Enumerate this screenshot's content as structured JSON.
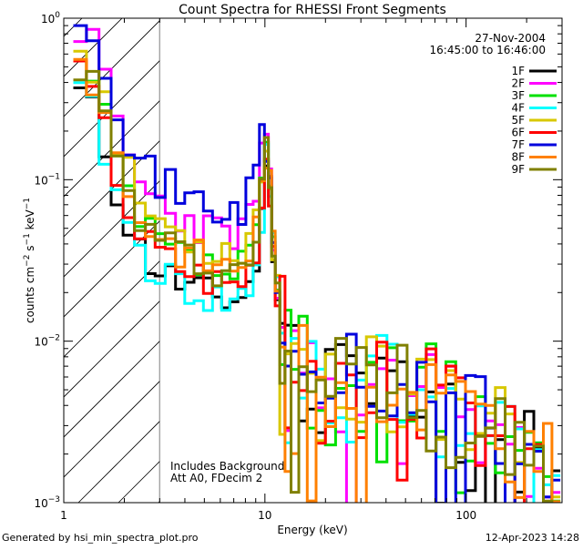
{
  "chart_data": {
    "type": "line",
    "title": "Count Spectra for RHESSI Front Segments",
    "xlabel": "Energy (keV)",
    "ylabel_parts": {
      "base": "counts cm",
      "exp1": "−2",
      "mid1": " s",
      "exp2": "−1",
      "mid2": " keV",
      "exp3": "−1"
    },
    "x_scale": "log",
    "y_scale": "log",
    "xlim": [
      1,
      300
    ],
    "ylim": [
      0.001,
      1
    ],
    "x_ticks": [
      {
        "v": 1,
        "label": "1"
      },
      {
        "v": 10,
        "label": "10"
      },
      {
        "v": 100,
        "label": "100"
      }
    ],
    "y_ticks": [
      {
        "v": 1,
        "base": "10",
        "exp": "0"
      },
      {
        "v": 0.1,
        "base": "10",
        "exp": "−1"
      },
      {
        "v": 0.01,
        "base": "10",
        "exp": "−2"
      },
      {
        "v": 0.001,
        "base": "10",
        "exp": "−3"
      }
    ],
    "date_label": "27-Nov-2004",
    "time_label": "16:45:00 to 16:46:00",
    "hatch_region_x": [
      1,
      3
    ],
    "annotation_lines": [
      "Includes Background",
      "Att A0, FDecim 2"
    ],
    "footer_left": "Generated by hsi_min_spectra_plot.pro",
    "footer_right": "12-Apr-2023 14:28",
    "legend_position": "top-right",
    "series": [
      {
        "name": "1F",
        "color": "#000000",
        "y_mult": 0.62,
        "noise_seed": 11
      },
      {
        "name": "2F",
        "color": "#ff00ff",
        "y_mult": 1.6,
        "noise_seed": 23
      },
      {
        "name": "3F",
        "color": "#00e000",
        "y_mult": 0.9,
        "noise_seed": 37
      },
      {
        "name": "4F",
        "color": "#00ffff",
        "y_mult": 0.6,
        "noise_seed": 41
      },
      {
        "name": "5F",
        "color": "#d8c800",
        "y_mult": 1.25,
        "noise_seed": 53
      },
      {
        "name": "6F",
        "color": "#ff0000",
        "y_mult": 0.8,
        "noise_seed": 67
      },
      {
        "name": "7F",
        "color": "#0000dd",
        "y_mult": 2.2,
        "noise_seed": 71
      },
      {
        "name": "8F",
        "color": "#ff8000",
        "y_mult": 1.0,
        "noise_seed": 83
      },
      {
        "name": "9F",
        "color": "#808000",
        "y_mult": 0.95,
        "noise_seed": 97
      }
    ],
    "base_spectrum": {
      "x": [
        1.2,
        1.4,
        1.6,
        1.85,
        2.1,
        2.4,
        2.7,
        3.0,
        3.4,
        3.8,
        4.2,
        4.7,
        5.2,
        5.8,
        6.4,
        7.0,
        7.7,
        8.4,
        9.1,
        9.7,
        10.2,
        10.6,
        11.0,
        11.5,
        12.2,
        13.0,
        14.0,
        15.5,
        17,
        19,
        21,
        24,
        27,
        30,
        34,
        38,
        43,
        48,
        54,
        60,
        67,
        75,
        84,
        94,
        105,
        118,
        132,
        148,
        165,
        185,
        205,
        230,
        255,
        280
      ],
      "y": [
        0.55,
        0.42,
        0.25,
        0.14,
        0.085,
        0.06,
        0.05,
        0.045,
        0.04,
        0.037,
        0.035,
        0.033,
        0.031,
        0.03,
        0.029,
        0.029,
        0.031,
        0.036,
        0.05,
        0.09,
        0.15,
        0.09,
        0.04,
        0.02,
        0.014,
        0.011,
        0.009,
        0.008,
        0.007,
        0.0065,
        0.006,
        0.0058,
        0.0056,
        0.0055,
        0.0054,
        0.0054,
        0.0054,
        0.0053,
        0.0052,
        0.005,
        0.0048,
        0.0045,
        0.0042,
        0.0039,
        0.0035,
        0.0032,
        0.0029,
        0.0026,
        0.0023,
        0.0021,
        0.0019,
        0.0017,
        0.0016,
        0.0014
      ]
    }
  }
}
